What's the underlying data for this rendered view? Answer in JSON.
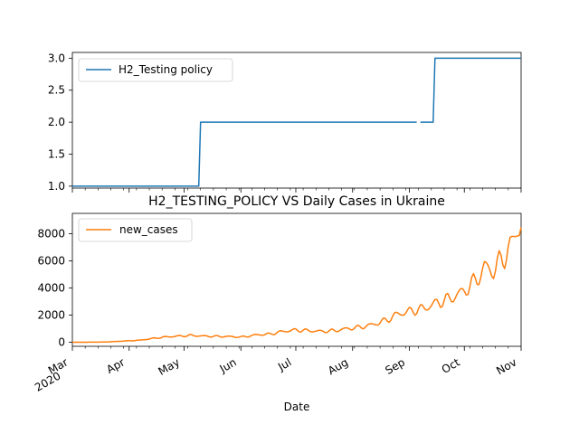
{
  "chart_data": [
    {
      "type": "line",
      "series": [
        {
          "name": "H2_Testing policy",
          "color": "#1f77b4",
          "points": [
            [
              "2020-03-01",
              1
            ],
            [
              "2020-05-09",
              1
            ],
            [
              "2020-05-10",
              2
            ],
            [
              "2020-09-05",
              2
            ],
            [
              "2020-09-07",
              2
            ],
            [
              "2020-09-14",
              2
            ],
            [
              "2020-09-15",
              3
            ],
            [
              "2020-11-01",
              3
            ]
          ],
          "gaps": [
            [
              "2020-09-05",
              "2020-09-07"
            ]
          ]
        }
      ],
      "x_ticks": [],
      "y_ticks": [
        "1.0",
        "1.5",
        "2.0",
        "2.5",
        "3.0"
      ],
      "ylim": [
        0.97,
        3.09
      ],
      "legend": "top-left",
      "grid": false
    },
    {
      "type": "line",
      "title": "H2_TESTING_POLICY VS Daily Cases in Ukraine",
      "xlabel": "Date",
      "series": [
        {
          "name": "new_cases",
          "color": "#ff7f0e"
        }
      ],
      "x_ticks": [
        {
          "date": "2020-03-01",
          "label": "Mar",
          "sub": "2020"
        },
        {
          "date": "2020-04-01",
          "label": "Apr"
        },
        {
          "date": "2020-05-01",
          "label": "May"
        },
        {
          "date": "2020-06-01",
          "label": "Jun"
        },
        {
          "date": "2020-07-01",
          "label": "Jul"
        },
        {
          "date": "2020-08-01",
          "label": "Aug"
        },
        {
          "date": "2020-09-01",
          "label": "Sep"
        },
        {
          "date": "2020-10-01",
          "label": "Oct"
        },
        {
          "date": "2020-11-01",
          "label": "Nov"
        }
      ],
      "y_ticks": [
        0,
        2000,
        4000,
        6000,
        8000
      ],
      "ylim": [
        -300,
        9500
      ],
      "xlim": [
        "2020-03-01",
        "2020-11-01"
      ],
      "legend": "top-left",
      "grid": false,
      "new_cases_anchors": [
        [
          "2020-03-01",
          0
        ],
        [
          "2020-03-15",
          5
        ],
        [
          "2020-03-20",
          15
        ],
        [
          "2020-03-25",
          60
        ],
        [
          "2020-03-31",
          100
        ],
        [
          "2020-04-07",
          150
        ],
        [
          "2020-04-15",
          300
        ],
        [
          "2020-04-22",
          400
        ],
        [
          "2020-04-28",
          450
        ],
        [
          "2020-05-05",
          500
        ],
        [
          "2020-05-12",
          450
        ],
        [
          "2020-05-19",
          430
        ],
        [
          "2020-05-26",
          420
        ],
        [
          "2020-06-01",
          380
        ],
        [
          "2020-06-05",
          450
        ],
        [
          "2020-06-10",
          550
        ],
        [
          "2020-06-17",
          600
        ],
        [
          "2020-06-24",
          800
        ],
        [
          "2020-07-01",
          900
        ],
        [
          "2020-07-08",
          850
        ],
        [
          "2020-07-15",
          800
        ],
        [
          "2020-07-22",
          850
        ],
        [
          "2020-07-29",
          1000
        ],
        [
          "2020-08-05",
          1100
        ],
        [
          "2020-08-12",
          1300
        ],
        [
          "2020-08-19",
          1600
        ],
        [
          "2020-08-26",
          2100
        ],
        [
          "2020-09-02",
          2300
        ],
        [
          "2020-09-09",
          2500
        ],
        [
          "2020-09-16",
          2900
        ],
        [
          "2020-09-23",
          3200
        ],
        [
          "2020-09-30",
          3700
        ],
        [
          "2020-10-07",
          4500
        ],
        [
          "2020-10-12",
          5500
        ],
        [
          "2020-10-17",
          5300
        ],
        [
          "2020-10-22",
          6200
        ],
        [
          "2020-10-27",
          7200
        ],
        [
          "2020-10-30",
          8500
        ],
        [
          "2020-11-01",
          8800
        ]
      ]
    }
  ]
}
